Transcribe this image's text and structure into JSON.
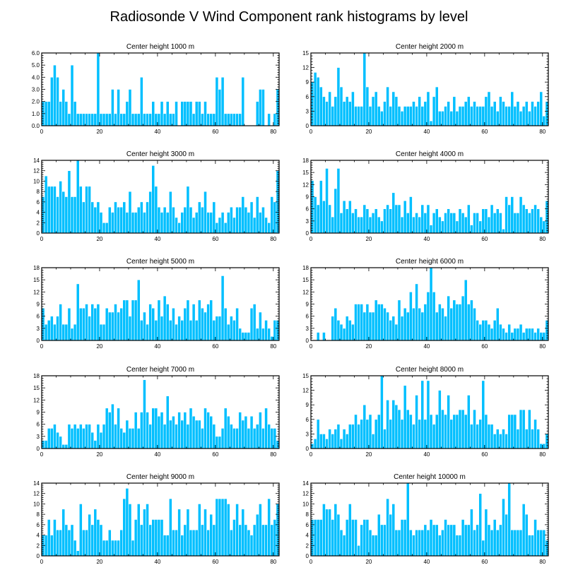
{
  "figure_title": "Radiosonde V Wind Component rank histograms by level",
  "bar_color": "#00bfff",
  "chart_data": [
    {
      "type": "bar",
      "title": "Center height 1000 m",
      "xlim": [
        0,
        82
      ],
      "ylim": [
        0,
        6
      ],
      "yticks": [
        "0.0",
        "1.0",
        "2.0",
        "3.0",
        "4.0",
        "5.0",
        "6.0"
      ],
      "xticks": [
        0,
        20,
        40,
        60,
        80
      ],
      "values": [
        2,
        2,
        2,
        4,
        5,
        4,
        2,
        3,
        2,
        1,
        5,
        2,
        1,
        1,
        1,
        1,
        1,
        1,
        1,
        6,
        1,
        1,
        1,
        1,
        3,
        1,
        3,
        1,
        1,
        2,
        3,
        1,
        1,
        1,
        4,
        1,
        1,
        1,
        2,
        1,
        1,
        2,
        1,
        2,
        1,
        1,
        2,
        0,
        2,
        2,
        2,
        2,
        1,
        2,
        2,
        1,
        2,
        1,
        1,
        1,
        4,
        3,
        4,
        1,
        1,
        1,
        1,
        1,
        1,
        4,
        0,
        0,
        0,
        0,
        2,
        3,
        3,
        0,
        1,
        0,
        1,
        3
      ]
    },
    {
      "type": "bar",
      "title": "Center height 2000 m",
      "xlim": [
        0,
        82
      ],
      "ylim": [
        0,
        15
      ],
      "yticks": [
        "0",
        "3",
        "6",
        "9",
        "12",
        "15"
      ],
      "xticks": [
        0,
        20,
        40,
        60,
        80
      ],
      "values": [
        9,
        11,
        10,
        8,
        6,
        5,
        7,
        4,
        6,
        12,
        8,
        5,
        6,
        5,
        7,
        4,
        4,
        4,
        15,
        8,
        4,
        6,
        7,
        4,
        3,
        5,
        8,
        4,
        7,
        6,
        4,
        3,
        4,
        4,
        4,
        5,
        4,
        6,
        4,
        5,
        7,
        1,
        6,
        8,
        3,
        3,
        4,
        5,
        3,
        6,
        3,
        4,
        4,
        5,
        6,
        4,
        5,
        4,
        4,
        4,
        6,
        7,
        4,
        5,
        3,
        6,
        5,
        4,
        4,
        7,
        4,
        5,
        3,
        4,
        5,
        3,
        5,
        4,
        5,
        7,
        2,
        5
      ]
    },
    {
      "type": "bar",
      "title": "Center height 3000 m",
      "xlim": [
        0,
        82
      ],
      "ylim": [
        0,
        14
      ],
      "yticks": [
        "0",
        "2",
        "4",
        "6",
        "8",
        "10",
        "12",
        "14"
      ],
      "xticks": [
        0,
        20,
        40,
        60,
        80
      ],
      "values": [
        7,
        11,
        9,
        9,
        9,
        7,
        10,
        8,
        7,
        12,
        7,
        7,
        14,
        9,
        6,
        9,
        9,
        6,
        5,
        6,
        4,
        2,
        2,
        5,
        4,
        6,
        5,
        5,
        6,
        4,
        8,
        4,
        4,
        5,
        6,
        4,
        6,
        8,
        13,
        9,
        5,
        4,
        5,
        4,
        8,
        5,
        3,
        2,
        4,
        5,
        9,
        5,
        3,
        4,
        6,
        5,
        8,
        4,
        4,
        6,
        2,
        3,
        4,
        2,
        4,
        5,
        3,
        5,
        5,
        7,
        5,
        4,
        6,
        3,
        7,
        4,
        5,
        3,
        2,
        7,
        6,
        12
      ]
    },
    {
      "type": "bar",
      "title": "Center height 4000 m",
      "xlim": [
        0,
        82
      ],
      "ylim": [
        0,
        18
      ],
      "yticks": [
        "0",
        "3",
        "6",
        "9",
        "12",
        "15",
        "18"
      ],
      "xticks": [
        0,
        20,
        40,
        60,
        80
      ],
      "values": [
        13,
        9,
        7,
        13,
        8,
        16,
        7,
        4,
        11,
        16,
        5,
        8,
        6,
        8,
        5,
        6,
        4,
        4,
        7,
        6,
        4,
        5,
        6,
        4,
        3,
        6,
        7,
        6,
        10,
        7,
        7,
        4,
        8,
        5,
        9,
        4,
        5,
        4,
        7,
        5,
        7,
        2,
        5,
        6,
        4,
        3,
        5,
        6,
        5,
        5,
        3,
        6,
        5,
        4,
        7,
        2,
        5,
        5,
        3,
        6,
        6,
        4,
        7,
        5,
        6,
        5,
        1,
        9,
        7,
        9,
        5,
        5,
        9,
        7,
        6,
        5,
        6,
        7,
        6,
        4,
        3,
        8
      ]
    },
    {
      "type": "bar",
      "title": "Center height 5000 m",
      "xlim": [
        0,
        82
      ],
      "ylim": [
        0,
        18
      ],
      "yticks": [
        "0",
        "3",
        "6",
        "9",
        "12",
        "15",
        "18"
      ],
      "xticks": [
        0,
        20,
        40,
        60,
        80
      ],
      "values": [
        8,
        4,
        5,
        6,
        4,
        6,
        9,
        4,
        4,
        8,
        3,
        4,
        14,
        8,
        8,
        9,
        6,
        9,
        8,
        9,
        4,
        4,
        8,
        7,
        7,
        9,
        7,
        8,
        10,
        10,
        6,
        10,
        10,
        15,
        5,
        7,
        4,
        9,
        8,
        5,
        10,
        6,
        11,
        9,
        5,
        8,
        4,
        6,
        5,
        8,
        10,
        5,
        9,
        5,
        10,
        8,
        7,
        9,
        10,
        5,
        6,
        6,
        16,
        8,
        4,
        6,
        5,
        8,
        3,
        2,
        2,
        2,
        8,
        9,
        3,
        7,
        3,
        5,
        3,
        1,
        5,
        5
      ]
    },
    {
      "type": "bar",
      "title": "Center height 6000 m",
      "xlim": [
        0,
        82
      ],
      "ylim": [
        0,
        18
      ],
      "yticks": [
        "0",
        "3",
        "6",
        "9",
        "12",
        "15",
        "18"
      ],
      "xticks": [
        0,
        20,
        40,
        60,
        80
      ],
      "values": [
        0,
        0,
        2,
        0,
        2,
        0,
        0,
        6,
        8,
        5,
        4,
        3,
        6,
        5,
        4,
        9,
        9,
        9,
        7,
        9,
        7,
        7,
        10,
        9,
        9,
        8,
        7,
        5,
        6,
        4,
        10,
        6,
        8,
        7,
        12,
        8,
        14,
        8,
        7,
        9,
        12,
        18,
        12,
        7,
        9,
        8,
        6,
        11,
        8,
        10,
        9,
        9,
        11,
        15,
        9,
        10,
        8,
        5,
        4,
        5,
        5,
        4,
        3,
        5,
        8,
        4,
        3,
        2,
        4,
        2,
        3,
        3,
        4,
        2,
        3,
        3,
        3,
        2,
        3,
        2,
        2,
        5
      ]
    },
    {
      "type": "bar",
      "title": "Center height 7000 m",
      "xlim": [
        0,
        82
      ],
      "ylim": [
        0,
        18
      ],
      "yticks": [
        "0",
        "3",
        "6",
        "9",
        "12",
        "15",
        "18"
      ],
      "xticks": [
        0,
        20,
        40,
        60,
        80
      ],
      "values": [
        2,
        2,
        5,
        5,
        6,
        4,
        3,
        1,
        1,
        6,
        5,
        6,
        5,
        6,
        5,
        6,
        6,
        4,
        2,
        6,
        4,
        6,
        10,
        9,
        11,
        6,
        10,
        5,
        4,
        7,
        5,
        5,
        9,
        5,
        9,
        17,
        9,
        6,
        10,
        10,
        8,
        9,
        6,
        13,
        7,
        8,
        6,
        9,
        7,
        9,
        6,
        10,
        8,
        7,
        7,
        5,
        10,
        9,
        8,
        6,
        3,
        3,
        5,
        10,
        8,
        6,
        5,
        5,
        9,
        7,
        8,
        5,
        8,
        5,
        6,
        9,
        5,
        10,
        6,
        5,
        5,
        2
      ]
    },
    {
      "type": "bar",
      "title": "Center height 8000 m",
      "xlim": [
        0,
        82
      ],
      "ylim": [
        0,
        15
      ],
      "yticks": [
        "0",
        "3",
        "6",
        "9",
        "12",
        "15"
      ],
      "xticks": [
        0,
        20,
        40,
        60,
        80
      ],
      "values": [
        1,
        2,
        6,
        3,
        3,
        2,
        4,
        3,
        4,
        5,
        2,
        4,
        3,
        5,
        5,
        7,
        5,
        6,
        9,
        6,
        7,
        3,
        6,
        7,
        15,
        4,
        10,
        6,
        10,
        9,
        8,
        6,
        13,
        8,
        7,
        5,
        11,
        6,
        14,
        6,
        14,
        7,
        5,
        7,
        12,
        8,
        7,
        11,
        6,
        7,
        7,
        8,
        8,
        7,
        11,
        5,
        8,
        5,
        6,
        14,
        7,
        5,
        5,
        3,
        4,
        3,
        4,
        3,
        7,
        7,
        7,
        4,
        8,
        8,
        4,
        8,
        4,
        6,
        4,
        1,
        1,
        3
      ]
    },
    {
      "type": "bar",
      "title": "Center height 9000 m",
      "xlim": [
        0,
        82
      ],
      "ylim": [
        0,
        14
      ],
      "yticks": [
        "0",
        "2",
        "4",
        "6",
        "8",
        "10",
        "12",
        "14"
      ],
      "xticks": [
        0,
        20,
        40,
        60,
        80
      ],
      "values": [
        4,
        4,
        7,
        4,
        7,
        5,
        5,
        9,
        6,
        5,
        6,
        3,
        1,
        10,
        5,
        5,
        8,
        6,
        9,
        7,
        6,
        3,
        3,
        5,
        3,
        3,
        3,
        5,
        11,
        13,
        10,
        3,
        7,
        10,
        6,
        9,
        10,
        6,
        7,
        7,
        7,
        7,
        4,
        4,
        11,
        5,
        5,
        9,
        4,
        6,
        9,
        5,
        5,
        5,
        10,
        6,
        9,
        5,
        8,
        6,
        11,
        11,
        11,
        11,
        10,
        5,
        7,
        10,
        6,
        9,
        6,
        5,
        4,
        6,
        8,
        10,
        6,
        6,
        11,
        6,
        7,
        10
      ]
    },
    {
      "type": "bar",
      "title": "Center height 10000 m",
      "xlim": [
        0,
        82
      ],
      "ylim": [
        0,
        14
      ],
      "yticks": [
        "0",
        "2",
        "4",
        "6",
        "8",
        "10",
        "12",
        "14"
      ],
      "xticks": [
        0,
        20,
        40,
        60,
        80
      ],
      "values": [
        7,
        7,
        7,
        7,
        10,
        9,
        9,
        7,
        10,
        8,
        5,
        4,
        7,
        10,
        7,
        7,
        2,
        6,
        7,
        7,
        5,
        4,
        4,
        8,
        6,
        6,
        11,
        8,
        10,
        5,
        5,
        7,
        7,
        14,
        5,
        4,
        5,
        5,
        5,
        6,
        5,
        7,
        6,
        6,
        4,
        5,
        7,
        6,
        6,
        6,
        4,
        4,
        7,
        6,
        6,
        9,
        5,
        6,
        12,
        3,
        9,
        6,
        5,
        7,
        5,
        6,
        11,
        8,
        14,
        5,
        5,
        5,
        5,
        10,
        8,
        4,
        4,
        7,
        5,
        5,
        5,
        3
      ]
    }
  ]
}
